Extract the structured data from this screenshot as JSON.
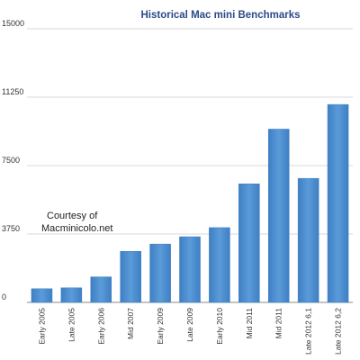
{
  "chart_data": {
    "type": "bar",
    "title": "Historical Mac mini Benchmarks",
    "xlabel": "",
    "ylabel": "",
    "categories": [
      "Early 2005",
      "Late 2005",
      "Early 2006",
      "Mid 2007",
      "Early 2009",
      "Late 2009",
      "Early 2010",
      "Mid 2011",
      "Mid 2011",
      "Late 2012 6,1",
      "Late 2012 6,2"
    ],
    "values": [
      750,
      800,
      1400,
      2800,
      3200,
      3600,
      4100,
      6500,
      9500,
      6800,
      10850
    ],
    "ylim": [
      0,
      15000
    ],
    "yticks": [
      0,
      3750,
      7500,
      11250,
      15000
    ],
    "grid": true,
    "legend": "none",
    "annotation": {
      "lines": [
        "Courtesy of",
        "Macminicolo.net"
      ]
    },
    "colors": {
      "bar": "#3e7fc4",
      "bar_light": "#5b9bd9",
      "title": "#2b4a8a",
      "grid": "#d8d8d8",
      "axis": "#888888"
    }
  }
}
